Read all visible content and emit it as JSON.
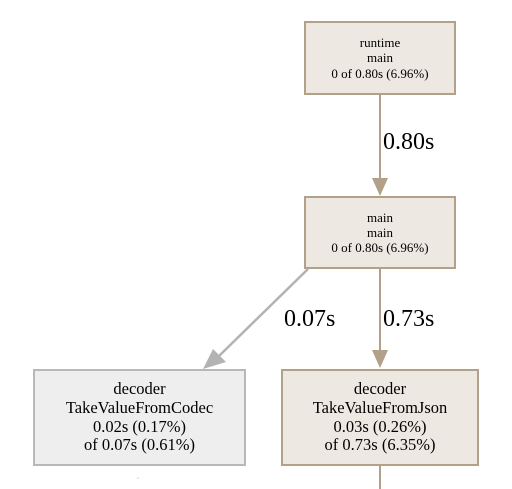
{
  "nodes": [
    {
      "id": "runtime-main",
      "package": "runtime",
      "function": "main",
      "stats": "0 of 0.80s (6.96%)"
    },
    {
      "id": "main-main",
      "package": "main",
      "function": "main",
      "stats": "0 of 0.80s (6.96%)"
    },
    {
      "id": "decoder-codec",
      "package": "decoder",
      "function": "TakeValueFromCodec",
      "flat": "0.02s (0.17%)",
      "cum": "of 0.07s (0.61%)"
    },
    {
      "id": "decoder-json",
      "package": "decoder",
      "function": "TakeValueFromJson",
      "flat": "0.03s (0.26%)",
      "cum": "of 0.73s (6.35%)"
    }
  ],
  "edges": [
    {
      "from": "runtime-main",
      "to": "main-main",
      "label": "0.80s",
      "color": "#b2a089"
    },
    {
      "from": "main-main",
      "to": "decoder-codec",
      "label": "0.07s",
      "color": "#b3b3b3"
    },
    {
      "from": "main-main",
      "to": "decoder-json",
      "label": "0.73s",
      "color": "#b2a089"
    }
  ],
  "colors": {
    "hot_border": "#b2a089",
    "hot_fill": "#ede8e2",
    "cold_border": "#b8b8b8",
    "cold_fill": "#eeeeee"
  }
}
